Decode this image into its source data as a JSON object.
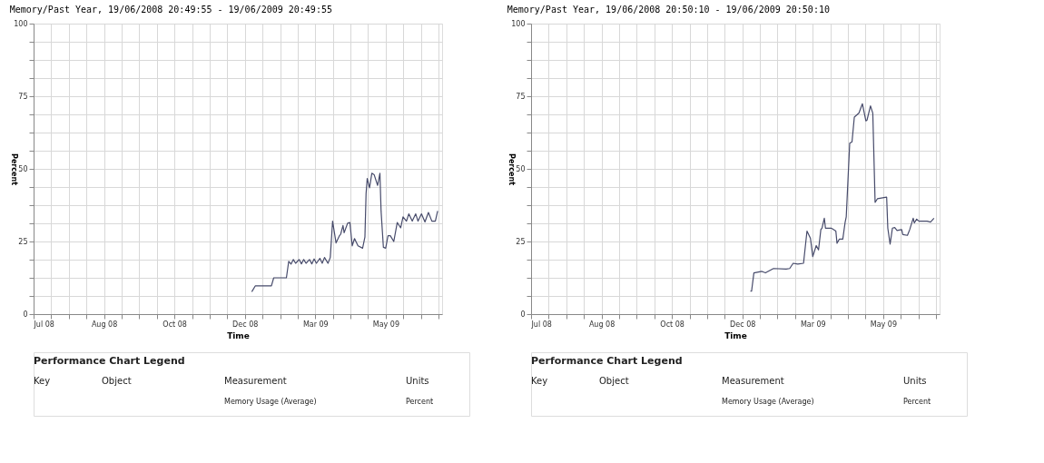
{
  "chart_data": [
    {
      "type": "line",
      "title": "Memory/Past Year, 19/06/2008 20:49:55 - 19/06/2009 20:49:55",
      "xlabel": "Time",
      "ylabel": "Percent",
      "xlim": [
        "2008-07-01",
        "2009-06-19T20:49"
      ],
      "ylim": [
        0,
        100
      ],
      "xticks": [
        {
          "value": "2008-07-01",
          "label": "Jul 08"
        },
        {
          "value": "2008-07-16T06:00",
          "label": null
        },
        {
          "value": "2008-07-31T12:00",
          "label": null
        },
        {
          "value": "2008-08-15T18:00",
          "label": null
        },
        {
          "value": "2008-08-31",
          "label": "Aug 08"
        },
        {
          "value": "2008-09-15T06:00",
          "label": null
        },
        {
          "value": "2008-09-30T12:00",
          "label": null
        },
        {
          "value": "2008-10-15T18:00",
          "label": null
        },
        {
          "value": "2008-10-31",
          "label": "Oct 08"
        },
        {
          "value": "2008-11-15T06:00",
          "label": null
        },
        {
          "value": "2008-11-30T12:00",
          "label": null
        },
        {
          "value": "2008-12-15T18:00",
          "label": null
        },
        {
          "value": "2008-12-31",
          "label": "Dec 08"
        },
        {
          "value": "2009-01-15T06:00",
          "label": null
        },
        {
          "value": "2009-01-30T12:00",
          "label": null
        },
        {
          "value": "2009-02-14T18:00",
          "label": null
        },
        {
          "value": "2009-03-02",
          "label": "Mar 09"
        },
        {
          "value": "2009-03-17T06:00",
          "label": null
        },
        {
          "value": "2009-04-01T12:00",
          "label": null
        },
        {
          "value": "2009-04-16T18:00",
          "label": null
        },
        {
          "value": "2009-05-02",
          "label": "May 09"
        },
        {
          "value": "2009-05-17T06:00",
          "label": null
        },
        {
          "value": "2009-06-01T12:00",
          "label": null
        },
        {
          "value": "2009-06-16T18:00",
          "label": null
        }
      ],
      "yticks": [
        0,
        {
          "value": 6.25,
          "label": null
        },
        {
          "value": 12.5,
          "label": null
        },
        {
          "value": 18.75,
          "label": null
        },
        25,
        {
          "value": 31.25,
          "label": null
        },
        {
          "value": 37.5,
          "label": null
        },
        {
          "value": 43.75,
          "label": null
        },
        50,
        {
          "value": 56.25,
          "label": null
        },
        {
          "value": 62.5,
          "label": null
        },
        {
          "value": 68.75,
          "label": null
        },
        75,
        {
          "value": 81.25,
          "label": null
        },
        {
          "value": 87.5,
          "label": null
        },
        {
          "value": 93.75,
          "label": null
        },
        100
      ],
      "grid": true,
      "marker": "none",
      "line_style": "solid",
      "series": [
        {
          "color": "#474b6b",
          "x": [
            "2009-01-06",
            "2009-01-09",
            "2009-01-23",
            "2009-01-25",
            "2009-02-05",
            "2009-02-07",
            "2009-02-09",
            "2009-02-11",
            "2009-02-13",
            "2009-02-16",
            "2009-02-18",
            "2009-02-20",
            "2009-02-22",
            "2009-02-25",
            "2009-02-27",
            "2009-03-01",
            "2009-03-03",
            "2009-03-06",
            "2009-03-08",
            "2009-03-10",
            "2009-03-13",
            "2009-03-15",
            "2009-03-17",
            "2009-03-20",
            "2009-03-23",
            "2009-03-24",
            "2009-03-26",
            "2009-03-27",
            "2009-03-30",
            "2009-04-01",
            "2009-04-03",
            "2009-04-05",
            "2009-04-08",
            "2009-04-12",
            "2009-04-14",
            "2009-04-15",
            "2009-04-16",
            "2009-04-18",
            "2009-04-20",
            "2009-04-22",
            "2009-04-25",
            "2009-04-27",
            "2009-04-28",
            "2009-04-30",
            "2009-05-02",
            "2009-05-04",
            "2009-05-06",
            "2009-05-09",
            "2009-05-12",
            "2009-05-15",
            "2009-05-17",
            "2009-05-20",
            "2009-05-22",
            "2009-05-25",
            "2009-05-28",
            "2009-05-30",
            "2009-06-02",
            "2009-06-05",
            "2009-06-08",
            "2009-06-11",
            "2009-06-14",
            "2009-06-16"
          ],
          "values": [
            7.7,
            9.7,
            9.7,
            12.5,
            12.5,
            18.2,
            17.2,
            18.8,
            17.5,
            18.8,
            17.3,
            18.8,
            17.5,
            18.8,
            17.3,
            19,
            17.5,
            19.2,
            17.5,
            19.5,
            17.5,
            19.5,
            32,
            24.5,
            27,
            27.5,
            30.5,
            28,
            31.3,
            31.5,
            23.5,
            26,
            23.5,
            22.7,
            26.5,
            41.5,
            46.7,
            43.5,
            48.5,
            48,
            44.3,
            48.5,
            35.5,
            23,
            22.7,
            27,
            27,
            25,
            31.5,
            29.7,
            33.5,
            32,
            34.5,
            32,
            34.5,
            32,
            34.5,
            31.7,
            35,
            32,
            32,
            35.5
          ]
        }
      ],
      "annotations": [
        "Performance Chart Legend",
        "Key",
        "Object",
        "Measurement",
        "Units",
        "Memory Usage (Average)",
        "Percent"
      ]
    },
    {
      "type": "line",
      "title": "Memory/Past Year, 19/06/2008 20:50:10 - 19/06/2009 20:50:10",
      "xlabel": "Time",
      "ylabel": "Percent",
      "xlim": [
        "2008-07-01",
        "2009-06-19T20:50"
      ],
      "ylim": [
        0,
        100
      ],
      "xticks": [
        {
          "value": "2008-07-01",
          "label": "Jul 08"
        },
        {
          "value": "2008-07-16T06:00",
          "label": null
        },
        {
          "value": "2008-07-31T12:00",
          "label": null
        },
        {
          "value": "2008-08-15T18:00",
          "label": null
        },
        {
          "value": "2008-08-31",
          "label": "Aug 08"
        },
        {
          "value": "2008-09-15T06:00",
          "label": null
        },
        {
          "value": "2008-09-30T12:00",
          "label": null
        },
        {
          "value": "2008-10-15T18:00",
          "label": null
        },
        {
          "value": "2008-10-31",
          "label": "Oct 08"
        },
        {
          "value": "2008-11-15T06:00",
          "label": null
        },
        {
          "value": "2008-11-30T12:00",
          "label": null
        },
        {
          "value": "2008-12-15T18:00",
          "label": null
        },
        {
          "value": "2008-12-31",
          "label": "Dec 08"
        },
        {
          "value": "2009-01-15T06:00",
          "label": null
        },
        {
          "value": "2009-01-30T12:00",
          "label": null
        },
        {
          "value": "2009-02-14T18:00",
          "label": null
        },
        {
          "value": "2009-03-02",
          "label": "Mar 09"
        },
        {
          "value": "2009-03-17T06:00",
          "label": null
        },
        {
          "value": "2009-04-01T12:00",
          "label": null
        },
        {
          "value": "2009-04-16T18:00",
          "label": null
        },
        {
          "value": "2009-05-02",
          "label": "May 09"
        },
        {
          "value": "2009-05-17T06:00",
          "label": null
        },
        {
          "value": "2009-06-01T12:00",
          "label": null
        },
        {
          "value": "2009-06-16T18:00",
          "label": null
        }
      ],
      "yticks": [
        0,
        {
          "value": 6.25,
          "label": null
        },
        {
          "value": 12.5,
          "label": null
        },
        {
          "value": 18.75,
          "label": null
        },
        25,
        {
          "value": 31.25,
          "label": null
        },
        {
          "value": 37.5,
          "label": null
        },
        {
          "value": 43.75,
          "label": null
        },
        50,
        {
          "value": 56.25,
          "label": null
        },
        {
          "value": 62.5,
          "label": null
        },
        {
          "value": 68.75,
          "label": null
        },
        75,
        {
          "value": 81.25,
          "label": null
        },
        {
          "value": 87.5,
          "label": null
        },
        {
          "value": 93.75,
          "label": null
        },
        100
      ],
      "grid": true,
      "marker": "none",
      "line_style": "solid",
      "series": [
        {
          "color": "#474b6b",
          "x": [
            "2009-01-07",
            "2009-01-08",
            "2009-01-10",
            "2009-01-17",
            "2009-01-20",
            "2009-01-27",
            "2009-02-07",
            "2009-02-10",
            "2009-02-13",
            "2009-02-17",
            "2009-02-22",
            "2009-02-25",
            "2009-02-28",
            "2009-03-02",
            "2009-03-05",
            "2009-03-07",
            "2009-03-09",
            "2009-03-10",
            "2009-03-12",
            "2009-03-13",
            "2009-03-18",
            "2009-03-22",
            "2009-03-23",
            "2009-03-25",
            "2009-03-28",
            "2009-03-30",
            "2009-03-31",
            "2009-04-03",
            "2009-04-05",
            "2009-04-07",
            "2009-04-11",
            "2009-04-14",
            "2009-04-17",
            "2009-04-18",
            "2009-04-21",
            "2009-04-23",
            "2009-04-25",
            "2009-04-27",
            "2009-05-05",
            "2009-05-06",
            "2009-05-08",
            "2009-05-10",
            "2009-05-12",
            "2009-05-14",
            "2009-05-18",
            "2009-05-19",
            "2009-05-23",
            "2009-05-25",
            "2009-05-28",
            "2009-05-29",
            "2009-05-31",
            "2009-06-02",
            "2009-06-09",
            "2009-06-12",
            "2009-06-15"
          ],
          "values": [
            7.9,
            7.9,
            14.2,
            14.7,
            14.2,
            15.7,
            15.5,
            15.7,
            17.5,
            17.2,
            17.5,
            28.6,
            26.1,
            19.8,
            23.6,
            22.1,
            29.1,
            29.6,
            33,
            29.6,
            29.6,
            28.6,
            24.4,
            25.8,
            25.8,
            31.5,
            33.5,
            58.8,
            59.3,
            67.8,
            69.2,
            72.4,
            66.5,
            66.8,
            71.7,
            69.2,
            38.5,
            39.7,
            40.3,
            29.6,
            24.1,
            29.6,
            29.8,
            28.8,
            29.1,
            27.4,
            27.1,
            29.1,
            33,
            31.4,
            32.7,
            32,
            32,
            31.7,
            33
          ]
        }
      ],
      "annotations": [
        "Performance Chart Legend",
        "Key",
        "Object",
        "Measurement",
        "Units",
        "Memory Usage (Average)",
        "Percent"
      ]
    }
  ]
}
